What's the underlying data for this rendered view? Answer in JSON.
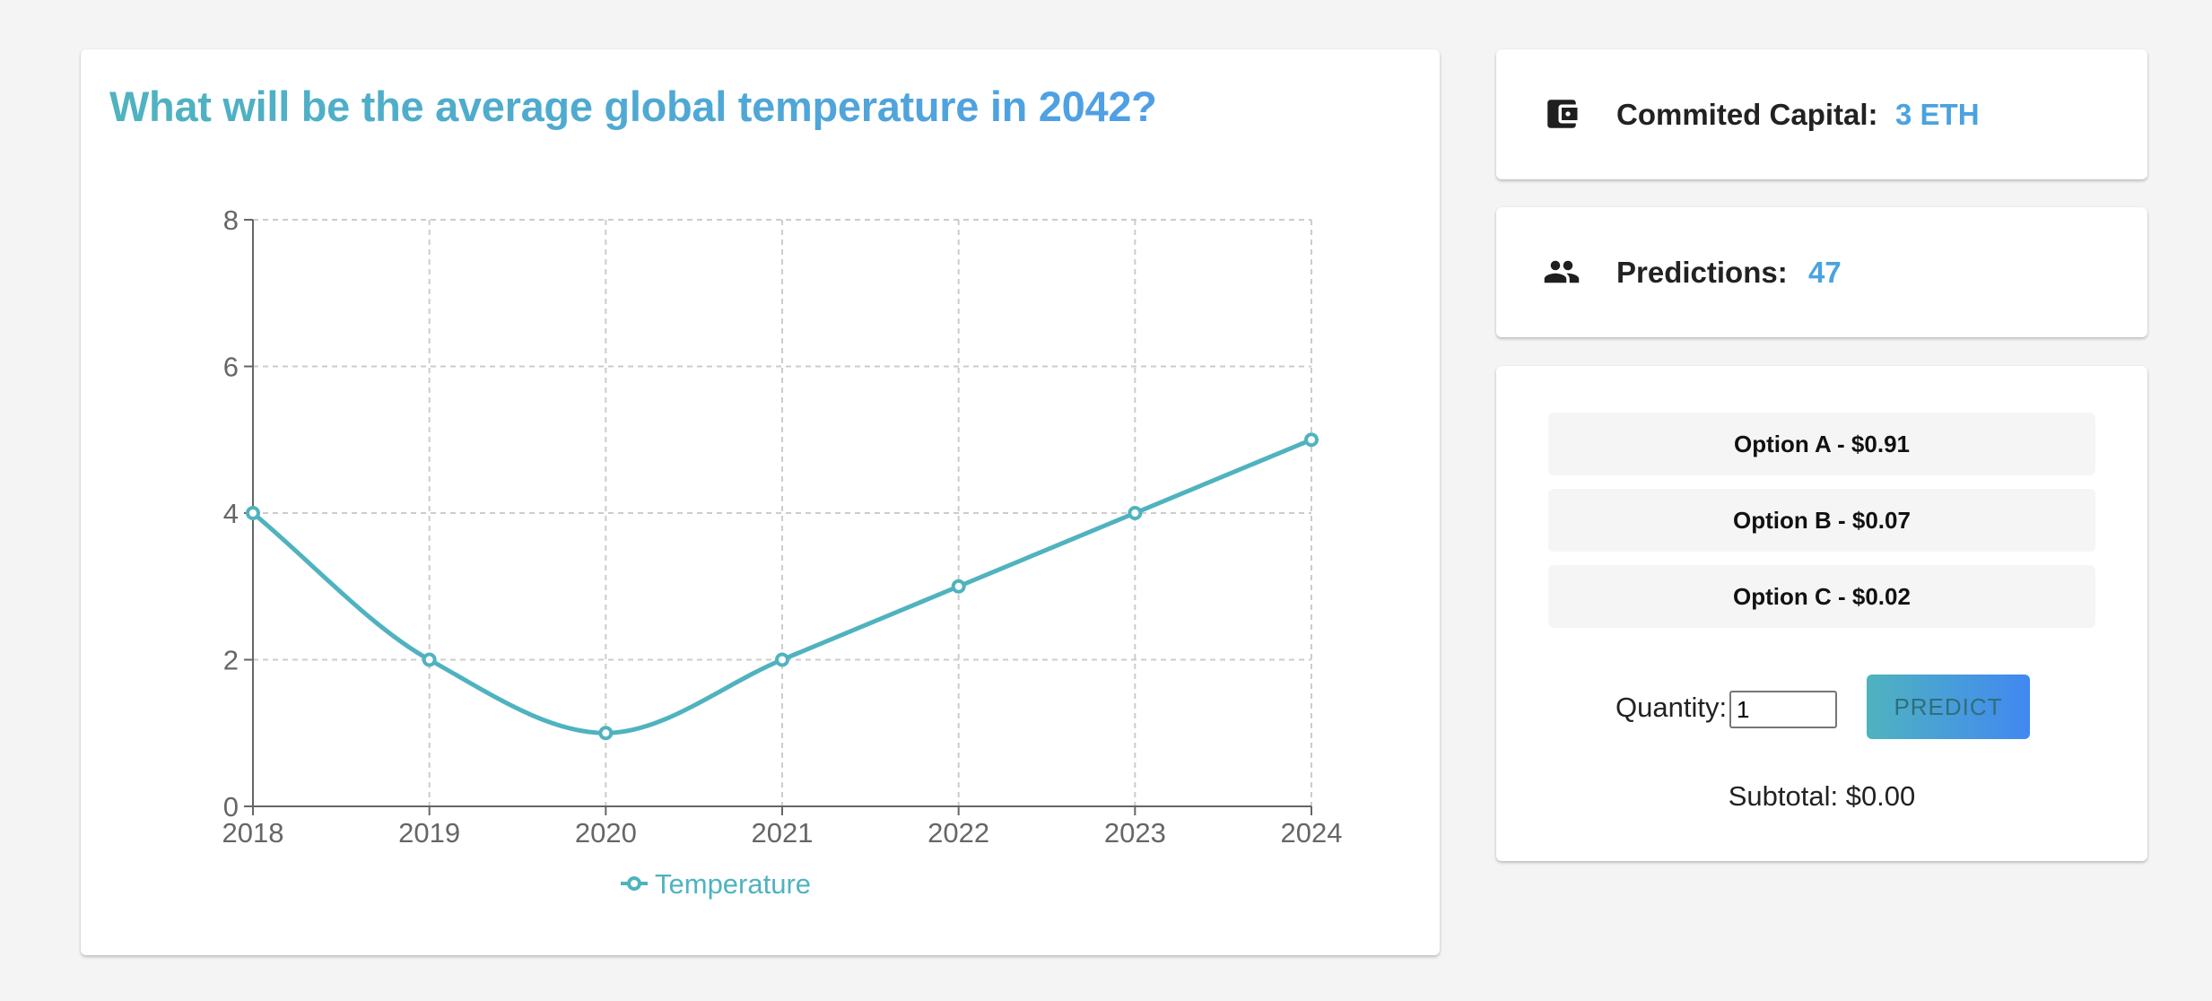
{
  "question": {
    "title": "What will be the average global temperature in 2042?"
  },
  "chart_data": {
    "type": "line",
    "x": [
      "2018",
      "2019",
      "2020",
      "2021",
      "2022",
      "2023",
      "2024"
    ],
    "series": [
      {
        "name": "Temperature",
        "values": [
          4,
          2,
          1,
          2,
          3,
          4,
          5
        ],
        "color": "#4fb3bf"
      }
    ],
    "yticks": [
      0,
      2,
      4,
      6,
      8
    ],
    "ylim": [
      0,
      8
    ],
    "grid": true,
    "smooth": true,
    "legend_position": "bottom"
  },
  "stats": {
    "capital_icon": "wallet-icon",
    "capital_label": "Commited Capital:",
    "capital_value": "3 ETH",
    "predictions_icon": "people-icon",
    "predictions_label": "Predictions:",
    "predictions_value": "47"
  },
  "trade": {
    "options": [
      {
        "label": "Option A - $0.91"
      },
      {
        "label": "Option B - $0.07"
      },
      {
        "label": "Option C - $0.02"
      }
    ],
    "quantity_label": "Quantity:",
    "quantity_value": "1",
    "predict_label": "PREDICT",
    "subtotal": "Subtotal: $0.00"
  },
  "colors": {
    "accent_teal": "#4fb3bf",
    "accent_blue": "#4f9fe6",
    "value_blue": "#4aa3df",
    "background": "#f4f4f4"
  }
}
